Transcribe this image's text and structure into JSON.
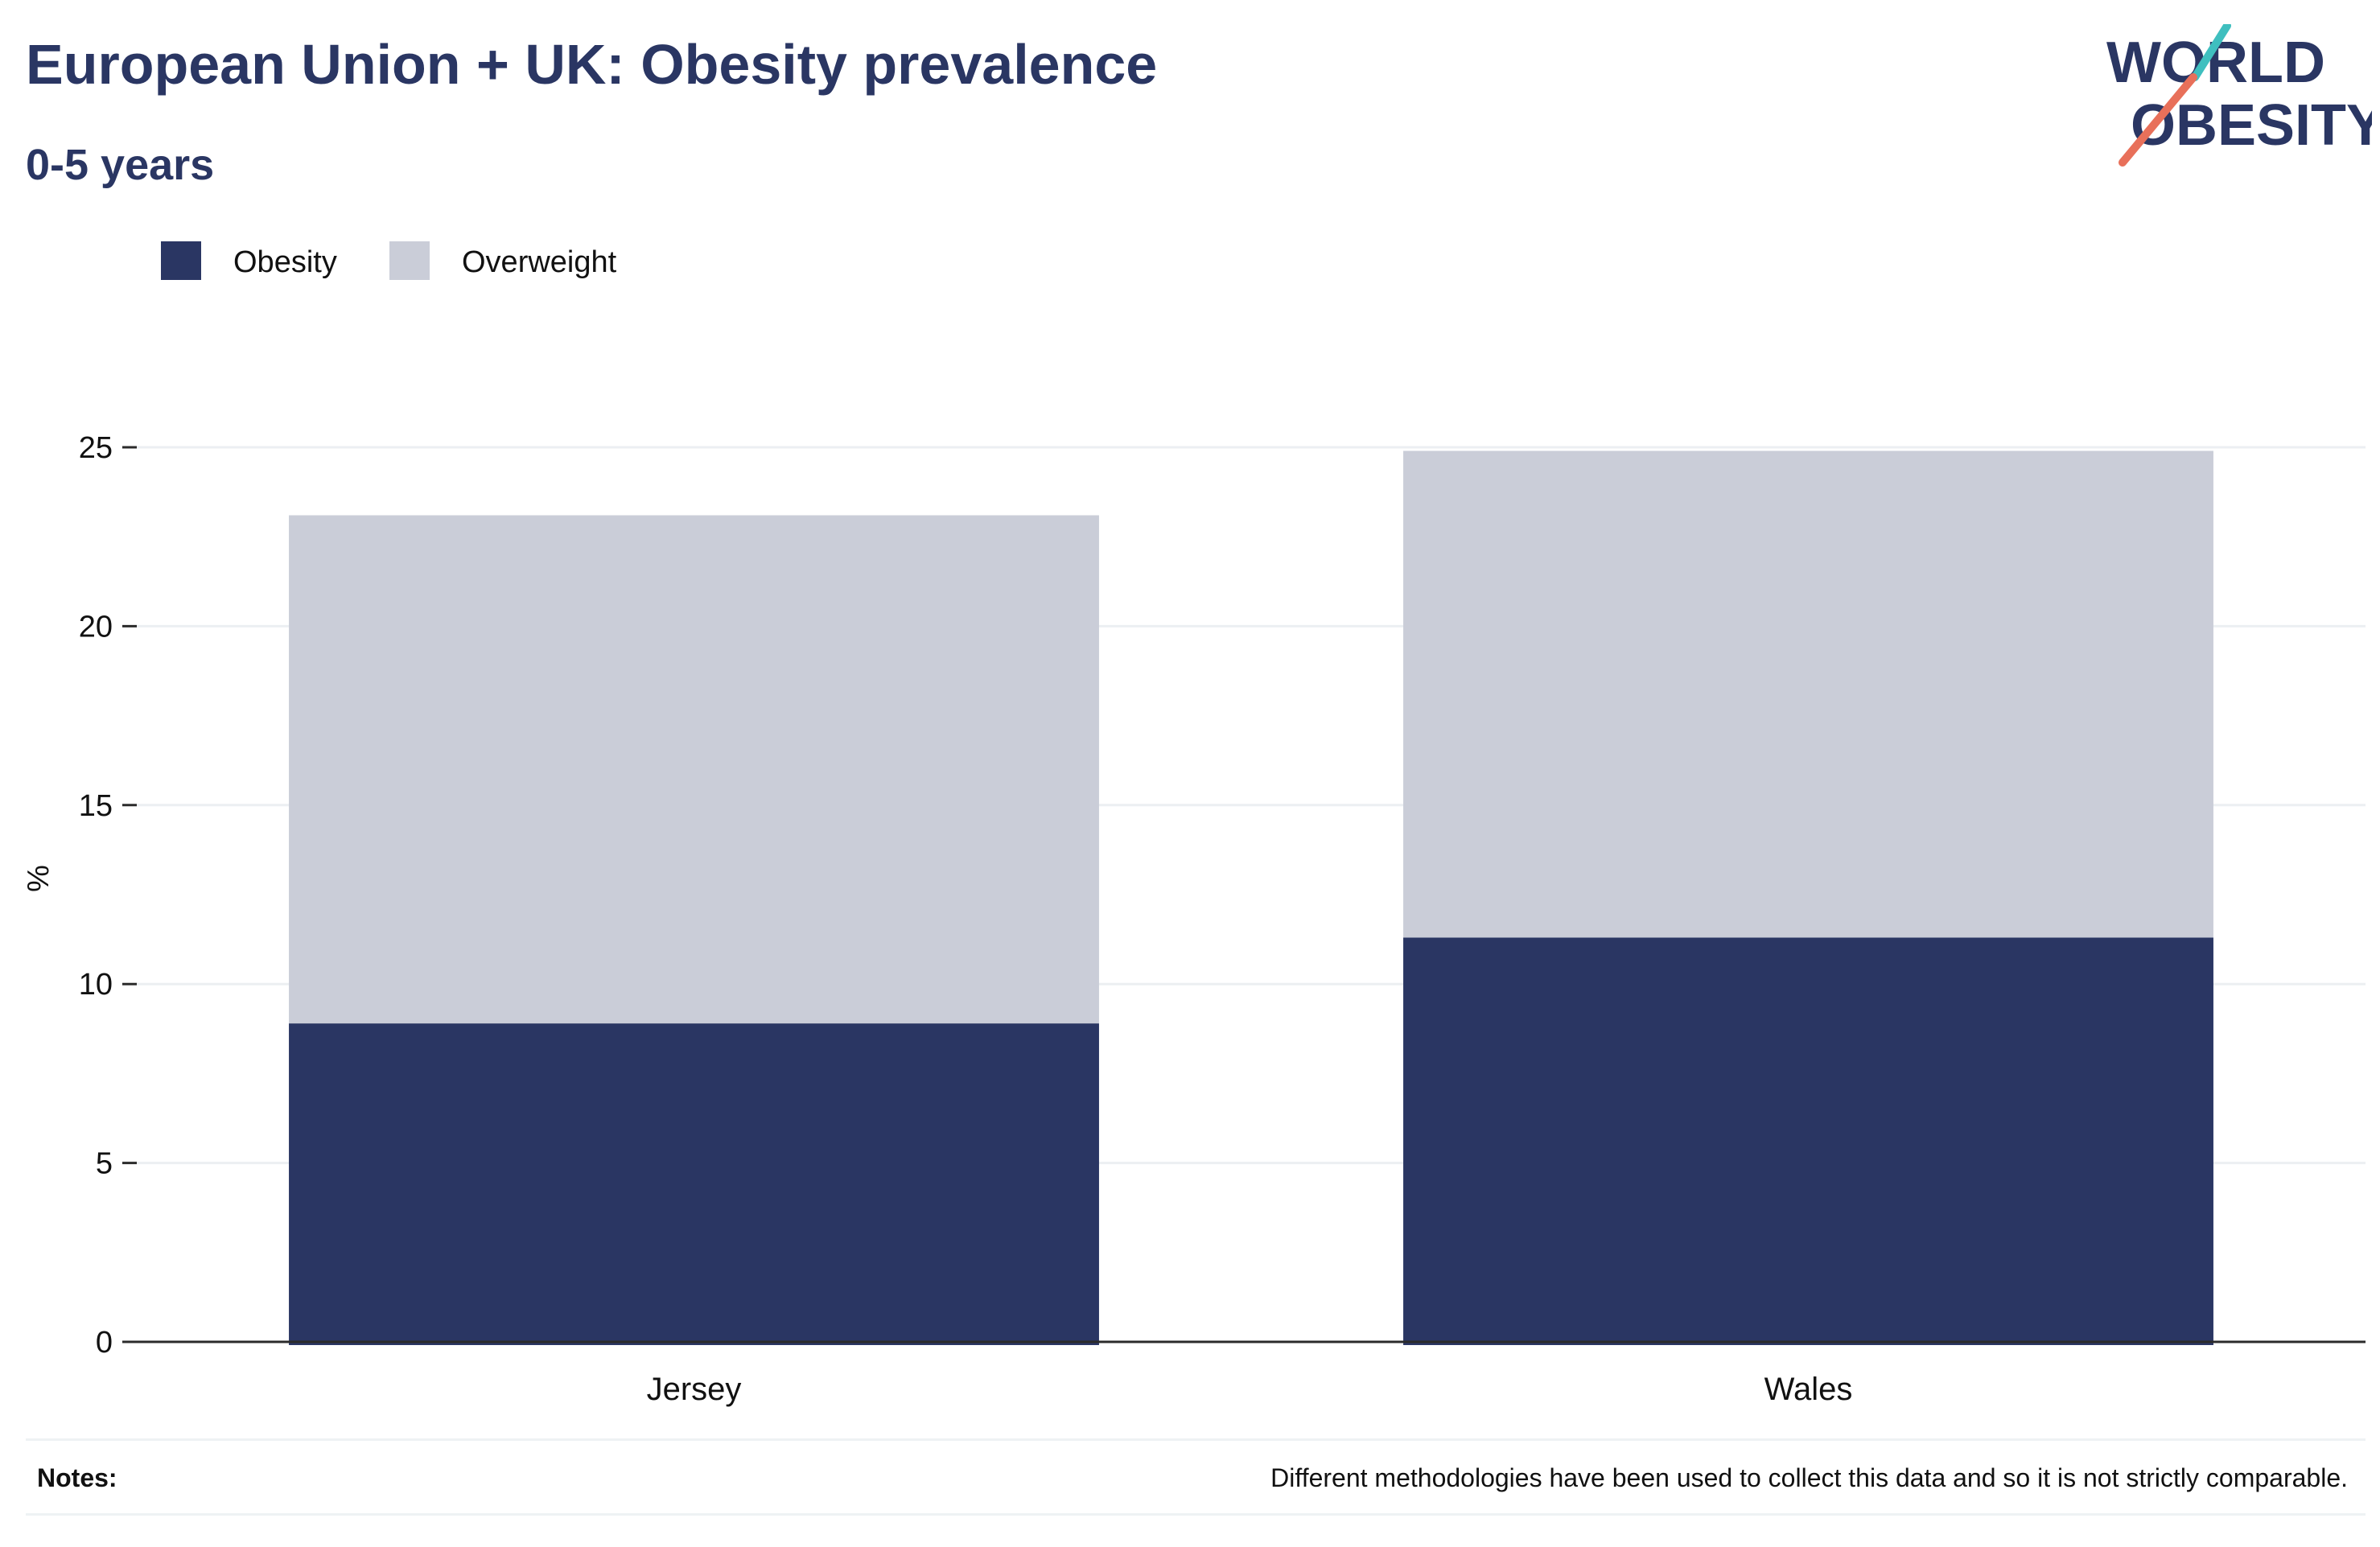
{
  "header": {
    "title": "European Union + UK: Obesity prevalence",
    "subtitle": "0-5 years",
    "logo_text_line1": "WORLD",
    "logo_text_line2": "OBESITY"
  },
  "colors": {
    "text": "#2a3663",
    "obesity": "#2a3663",
    "overweight": "#cacdd8",
    "gridline": "#eceff2",
    "axis": "#2b2b2b",
    "logo_teal": "#3fbfbf",
    "logo_coral": "#e8705a"
  },
  "chart_data": {
    "type": "bar",
    "stacked": true,
    "categories": [
      "Jersey",
      "Wales"
    ],
    "series": [
      {
        "name": "Obesity",
        "values": [
          8.9,
          11.3
        ]
      },
      {
        "name": "Overweight",
        "values": [
          14.2,
          13.6
        ]
      }
    ],
    "ylabel": "%",
    "xlabel": "",
    "ylim": [
      0,
      25
    ],
    "yticks": [
      0,
      5,
      10,
      15,
      20,
      25
    ],
    "grid": true,
    "legend_position": "top-left"
  },
  "notes": {
    "label": "Notes:",
    "text": "Different methodologies have been used to collect this data and so it is not strictly comparable."
  }
}
